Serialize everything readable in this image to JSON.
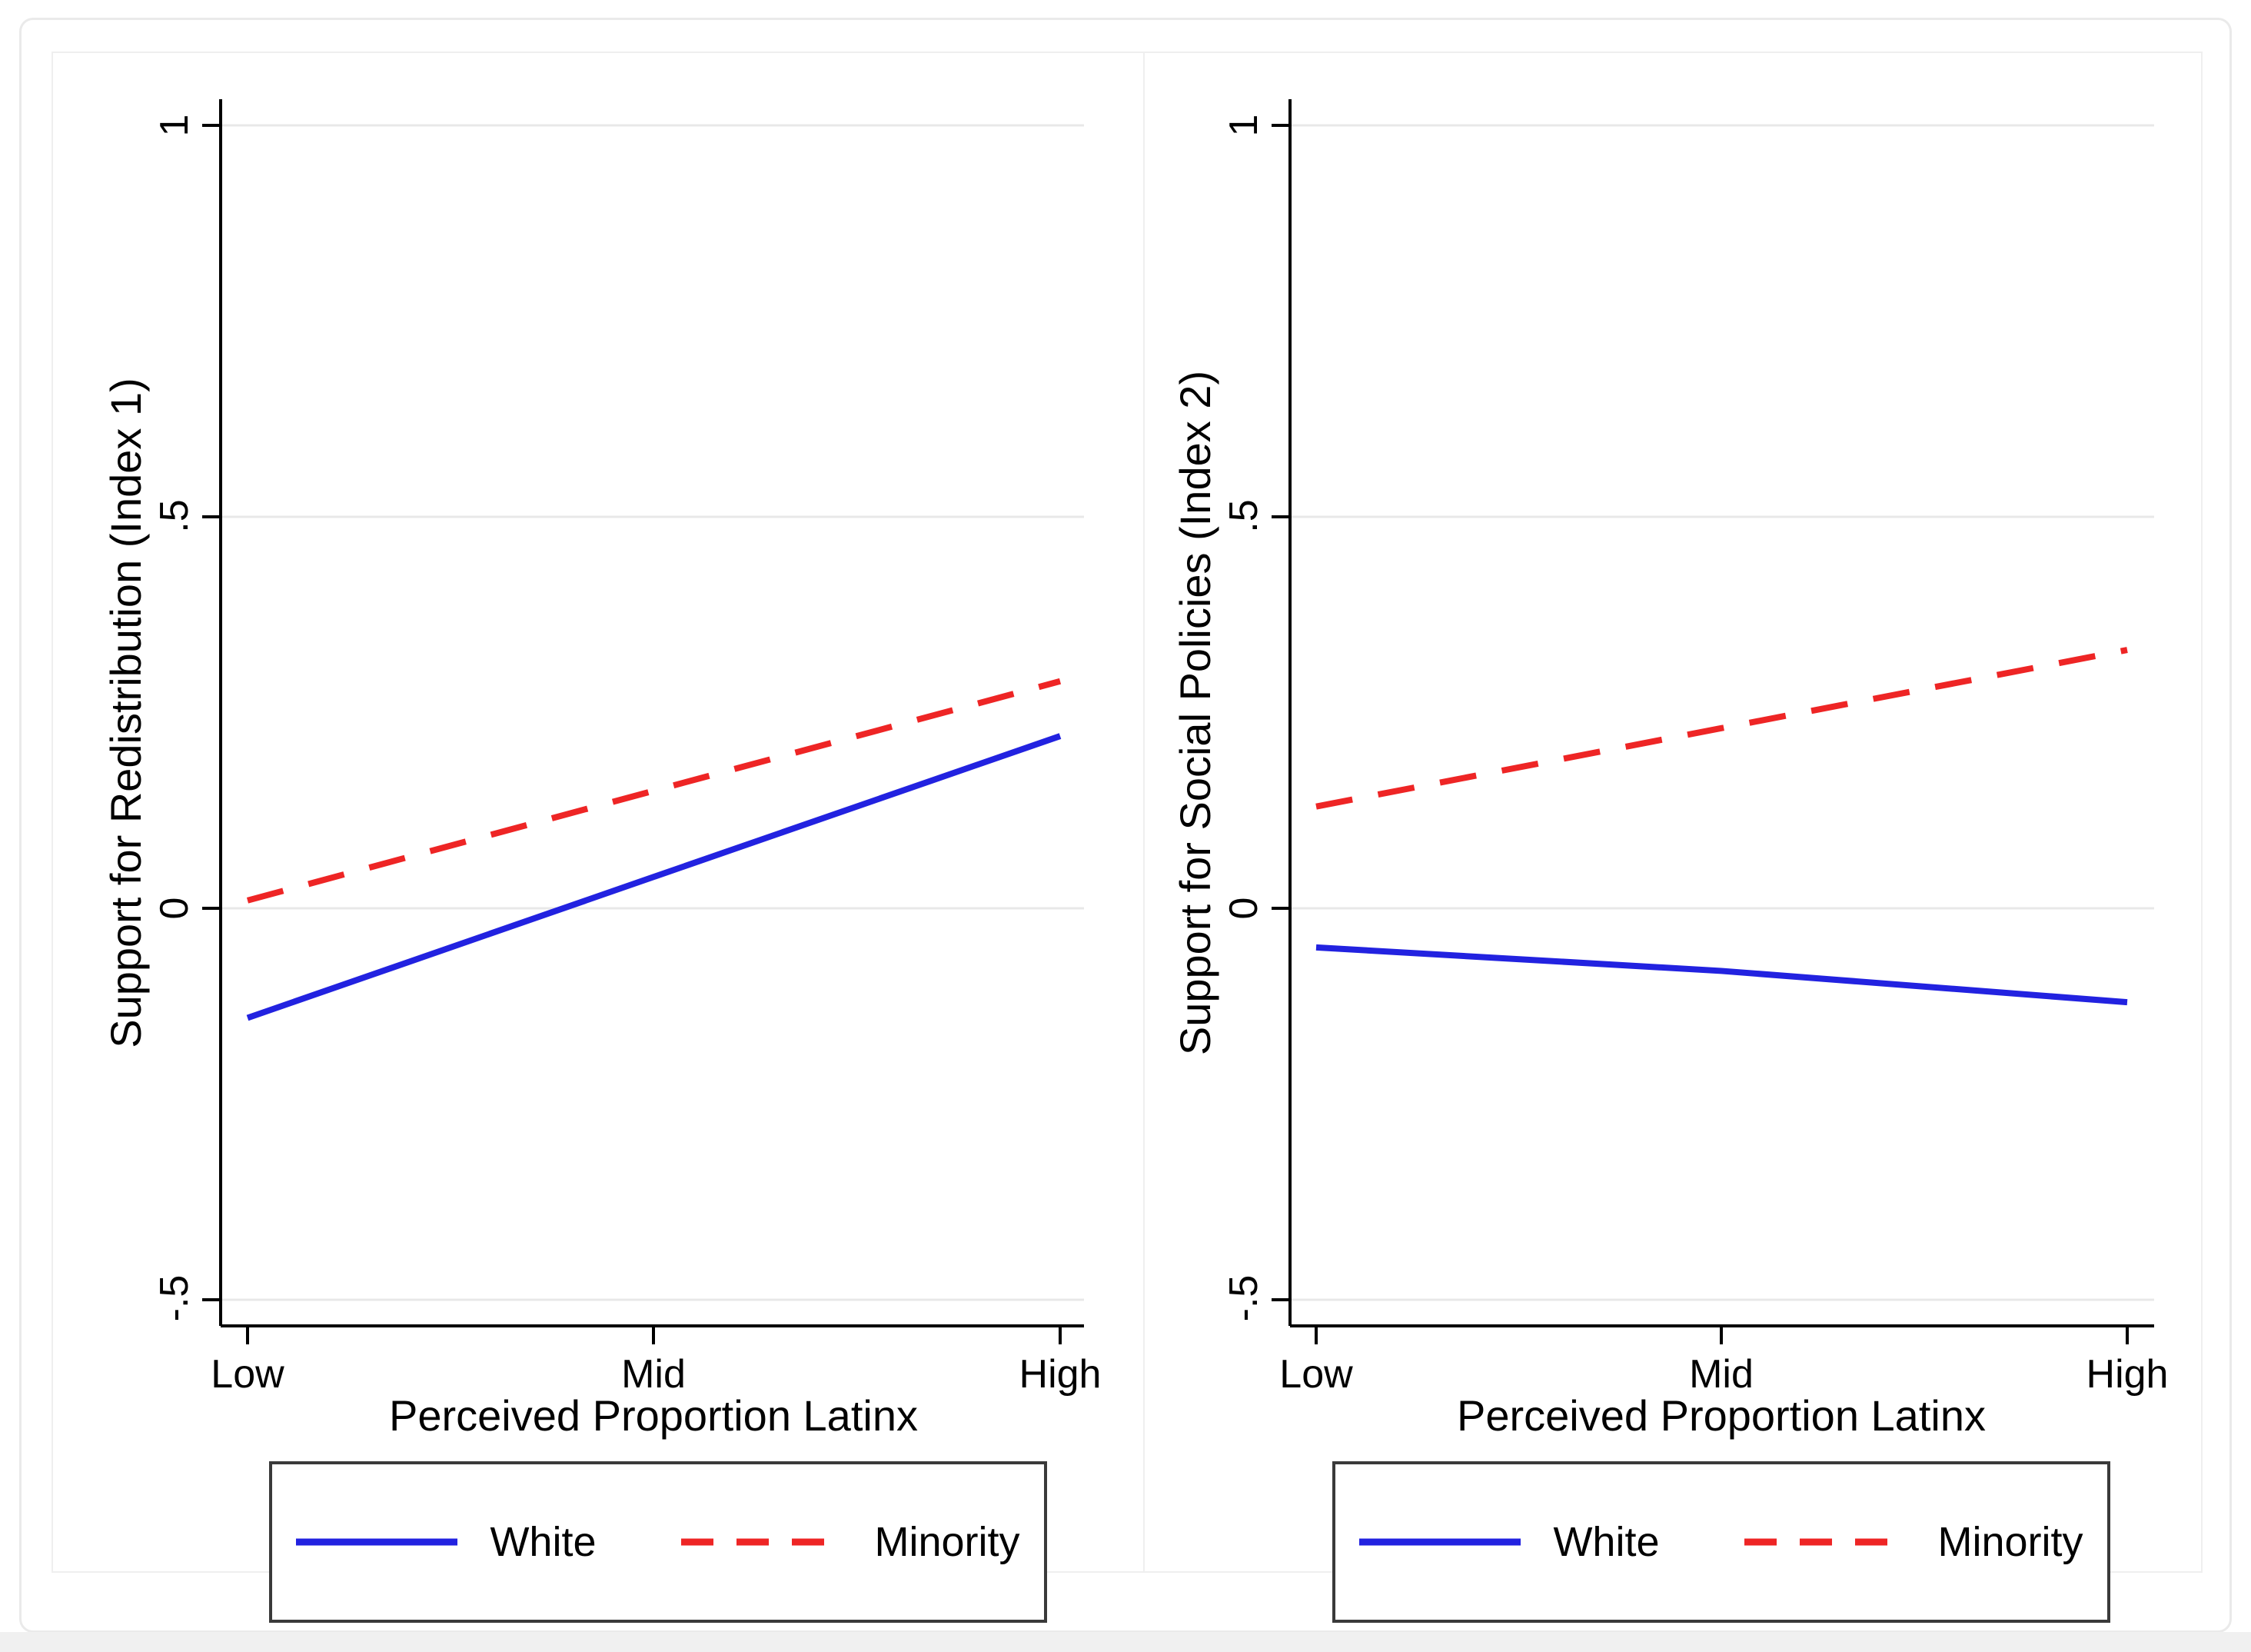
{
  "theme": {
    "background": "#ffffff",
    "frame_border": "#eaeaea",
    "footer_band": "#f0f0f0",
    "panel_border": "#efefef",
    "grid_color": "#e8e8e8",
    "axis_color": "#000000",
    "legend_border": "#3a3a3a"
  },
  "chart_data": [
    {
      "type": "line",
      "categories": [
        "Low",
        "Mid",
        "High"
      ],
      "xlabel": "Perceived Proportion Latinx",
      "ylabel": "Support for Redistribution (Index 1)",
      "ylim": [
        -0.5,
        1
      ],
      "ytick_values": [
        1,
        0.5,
        0,
        -0.5
      ],
      "ytick_labels": [
        "1",
        ".5",
        "0",
        "-.5"
      ],
      "grid": true,
      "legend_position": "bottom",
      "series": [
        {
          "name": "White",
          "style": "solid",
          "color": "#2222e0",
          "values": [
            -0.14,
            0.04,
            0.22
          ]
        },
        {
          "name": "Minority",
          "style": "dashed",
          "color": "#ee2525",
          "values": [
            0.01,
            0.15,
            0.29
          ]
        }
      ]
    },
    {
      "type": "line",
      "categories": [
        "Low",
        "Mid",
        "High"
      ],
      "xlabel": "Perceived Proportion Latinx",
      "ylabel": "Support for Social Policies (Index 2)",
      "ylim": [
        -0.5,
        1
      ],
      "ytick_values": [
        1,
        0.5,
        0,
        -0.5
      ],
      "ytick_labels": [
        "1",
        ".5",
        "0",
        "-.5"
      ],
      "grid": true,
      "legend_position": "bottom",
      "series": [
        {
          "name": "White",
          "style": "solid",
          "color": "#2222e0",
          "values": [
            -0.05,
            -0.08,
            -0.12
          ]
        },
        {
          "name": "Minority",
          "style": "dashed",
          "color": "#ee2525",
          "values": [
            0.13,
            0.23,
            0.33
          ]
        }
      ]
    }
  ]
}
